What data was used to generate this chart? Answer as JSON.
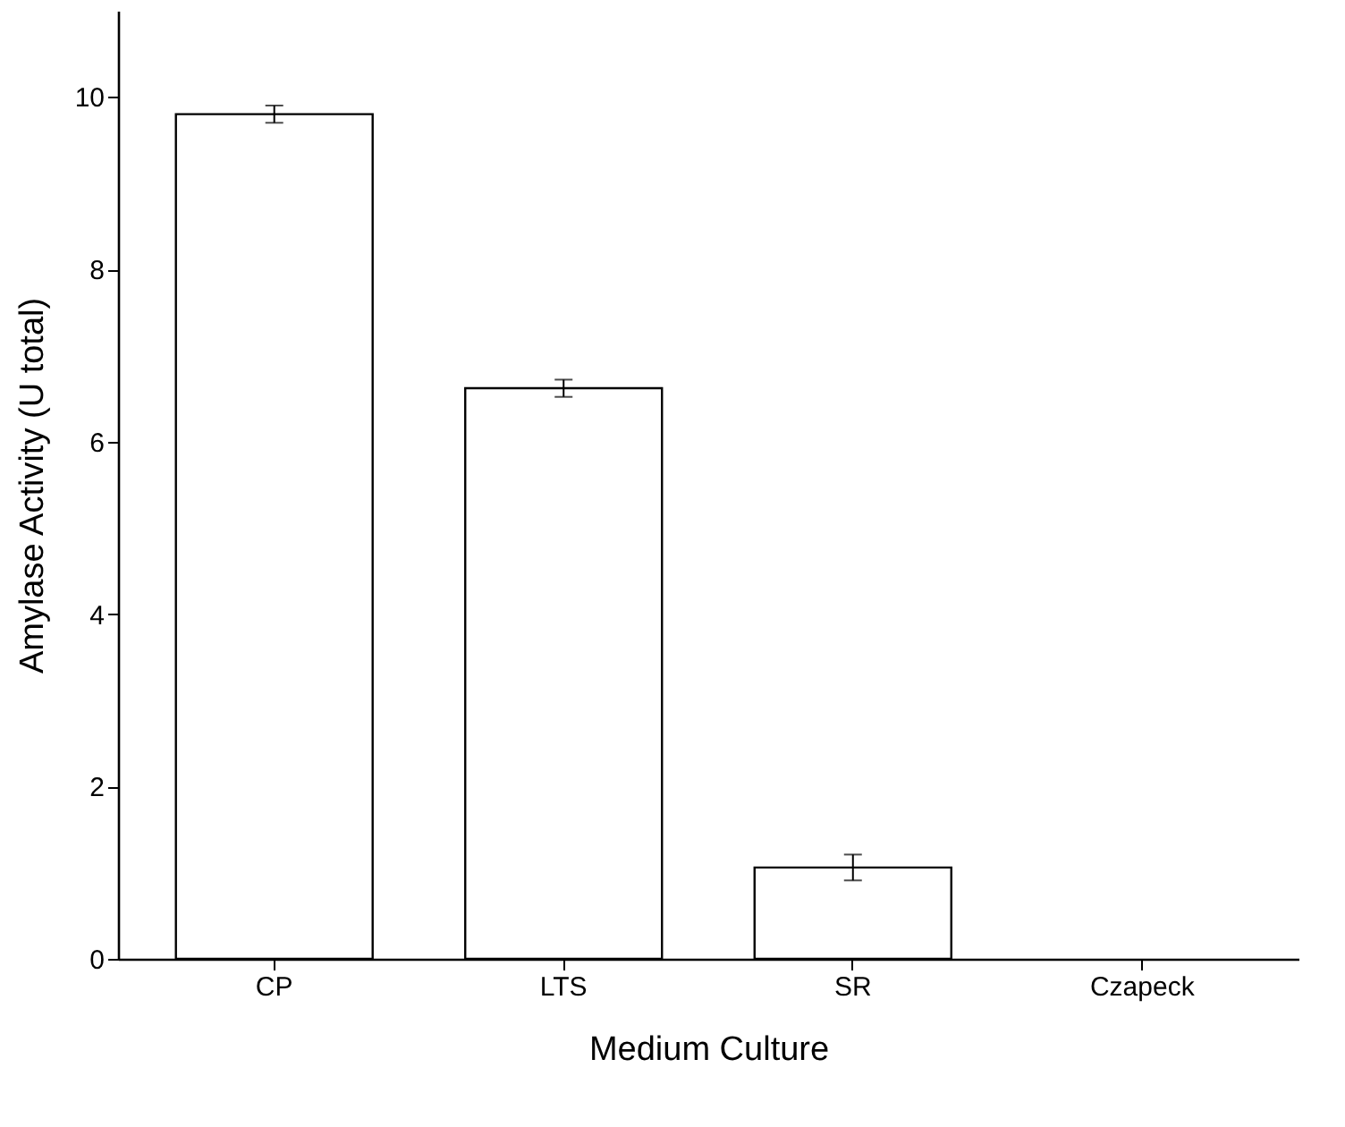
{
  "chart_data": {
    "type": "bar",
    "xlabel": "Medium Culture",
    "ylabel": "Amylase Activity (U total)",
    "categories": [
      "CP",
      "LTS",
      "SR",
      "Czapeck"
    ],
    "values": [
      9.8,
      6.62,
      1.06,
      null
    ],
    "errors": [
      0.1,
      0.1,
      0.15,
      null
    ],
    "color": "#ffffff",
    "ylim": [
      0,
      11
    ],
    "yticks": [
      0,
      2,
      4,
      6,
      8,
      10
    ],
    "grid": false
  }
}
